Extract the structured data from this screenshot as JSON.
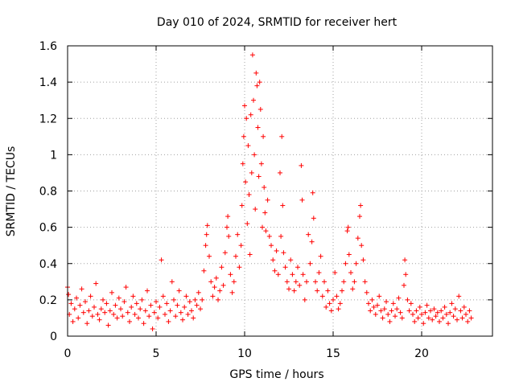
{
  "chart_data": {
    "type": "scatter",
    "title": "Day 010 of 2024, SRMTID for receiver hert",
    "xlabel": "GPS time / hours",
    "ylabel": "SRMTID / TECUs",
    "xlim": [
      0,
      24
    ],
    "ylim": [
      0,
      1.6
    ],
    "x_ticks": [
      0,
      5,
      10,
      15,
      20
    ],
    "x_tick_labels": [
      "0",
      "5",
      "10",
      "15",
      "20"
    ],
    "y_ticks": [
      0,
      0.2,
      0.4,
      0.6,
      0.8,
      1.0,
      1.2,
      1.4,
      1.6
    ],
    "y_tick_labels": [
      "0",
      "0.2",
      "0.4",
      "0.6",
      "0.8",
      "1",
      "1.2",
      "1.4",
      "1.6"
    ],
    "grid": true,
    "marker": "+",
    "marker_color": "#ff0000",
    "x_data_end": 22.8,
    "series": [
      {
        "name": "SRMTID",
        "points": [
          [
            0.0,
            0.27
          ],
          [
            0.05,
            0.23
          ],
          [
            0.1,
            0.12
          ],
          [
            0.2,
            0.18
          ],
          [
            0.3,
            0.08
          ],
          [
            0.4,
            0.15
          ],
          [
            0.5,
            0.21
          ],
          [
            0.6,
            0.1
          ],
          [
            0.7,
            0.17
          ],
          [
            0.8,
            0.26
          ],
          [
            0.9,
            0.13
          ],
          [
            1.0,
            0.19
          ],
          [
            1.1,
            0.07
          ],
          [
            1.2,
            0.14
          ],
          [
            1.3,
            0.22
          ],
          [
            1.4,
            0.11
          ],
          [
            1.5,
            0.16
          ],
          [
            1.6,
            0.29
          ],
          [
            1.7,
            0.12
          ],
          [
            1.8,
            0.09
          ],
          [
            1.9,
            0.15
          ],
          [
            2.0,
            0.2
          ],
          [
            2.1,
            0.13
          ],
          [
            2.2,
            0.18
          ],
          [
            2.3,
            0.06
          ],
          [
            2.4,
            0.14
          ],
          [
            2.5,
            0.24
          ],
          [
            2.6,
            0.12
          ],
          [
            2.7,
            0.17
          ],
          [
            2.8,
            0.1
          ],
          [
            2.9,
            0.21
          ],
          [
            3.0,
            0.15
          ],
          [
            3.1,
            0.11
          ],
          [
            3.2,
            0.19
          ],
          [
            3.3,
            0.27
          ],
          [
            3.4,
            0.13
          ],
          [
            3.5,
            0.08
          ],
          [
            3.6,
            0.16
          ],
          [
            3.7,
            0.22
          ],
          [
            3.8,
            0.12
          ],
          [
            3.9,
            0.18
          ],
          [
            4.0,
            0.1
          ],
          [
            4.1,
            0.15
          ],
          [
            4.2,
            0.2
          ],
          [
            4.3,
            0.07
          ],
          [
            4.4,
            0.14
          ],
          [
            4.5,
            0.25
          ],
          [
            4.6,
            0.11
          ],
          [
            4.7,
            0.17
          ],
          [
            4.8,
            0.04
          ],
          [
            4.9,
            0.13
          ],
          [
            5.0,
            0.19
          ],
          [
            5.1,
            0.1
          ],
          [
            5.2,
            0.16
          ],
          [
            5.3,
            0.42
          ],
          [
            5.4,
            0.22
          ],
          [
            5.5,
            0.12
          ],
          [
            5.6,
            0.18
          ],
          [
            5.7,
            0.08
          ],
          [
            5.8,
            0.14
          ],
          [
            5.9,
            0.3
          ],
          [
            6.0,
            0.2
          ],
          [
            6.1,
            0.11
          ],
          [
            6.2,
            0.17
          ],
          [
            6.3,
            0.25
          ],
          [
            6.4,
            0.13
          ],
          [
            6.5,
            0.09
          ],
          [
            6.6,
            0.16
          ],
          [
            6.7,
            0.22
          ],
          [
            6.8,
            0.12
          ],
          [
            6.9,
            0.19
          ],
          [
            7.0,
            0.14
          ],
          [
            7.1,
            0.1
          ],
          [
            7.2,
            0.2
          ],
          [
            7.3,
            0.17
          ],
          [
            7.4,
            0.24
          ],
          [
            7.5,
            0.15
          ],
          [
            7.6,
            0.2
          ],
          [
            7.7,
            0.36
          ],
          [
            7.8,
            0.5
          ],
          [
            7.85,
            0.56
          ],
          [
            7.9,
            0.61
          ],
          [
            8.0,
            0.44
          ],
          [
            8.1,
            0.3
          ],
          [
            8.2,
            0.22
          ],
          [
            8.3,
            0.27
          ],
          [
            8.4,
            0.32
          ],
          [
            8.5,
            0.2
          ],
          [
            8.6,
            0.25
          ],
          [
            8.7,
            0.38
          ],
          [
            8.8,
            0.28
          ],
          [
            8.9,
            0.46
          ],
          [
            9.0,
            0.6
          ],
          [
            9.05,
            0.66
          ],
          [
            9.1,
            0.55
          ],
          [
            9.2,
            0.34
          ],
          [
            9.3,
            0.24
          ],
          [
            9.4,
            0.3
          ],
          [
            9.5,
            0.44
          ],
          [
            9.6,
            0.56
          ],
          [
            9.7,
            0.38
          ],
          [
            9.8,
            0.5
          ],
          [
            9.85,
            0.72
          ],
          [
            9.9,
            0.95
          ],
          [
            9.95,
            1.1
          ],
          [
            10.0,
            1.27
          ],
          [
            10.05,
            0.85
          ],
          [
            10.1,
            1.2
          ],
          [
            10.15,
            0.62
          ],
          [
            10.2,
            1.05
          ],
          [
            10.25,
            0.78
          ],
          [
            10.3,
            0.45
          ],
          [
            10.35,
            1.22
          ],
          [
            10.4,
            0.9
          ],
          [
            10.45,
            1.55
          ],
          [
            10.5,
            1.3
          ],
          [
            10.55,
            1.0
          ],
          [
            10.6,
            0.7
          ],
          [
            10.65,
            1.45
          ],
          [
            10.7,
            1.38
          ],
          [
            10.75,
            1.15
          ],
          [
            10.8,
            0.88
          ],
          [
            10.85,
            1.4
          ],
          [
            10.9,
            1.25
          ],
          [
            10.95,
            0.95
          ],
          [
            11.0,
            0.6
          ],
          [
            11.05,
            1.1
          ],
          [
            11.1,
            0.82
          ],
          [
            11.15,
            0.68
          ],
          [
            11.2,
            0.58
          ],
          [
            11.3,
            0.75
          ],
          [
            11.4,
            0.55
          ],
          [
            11.5,
            0.5
          ],
          [
            11.6,
            0.42
          ],
          [
            11.7,
            0.36
          ],
          [
            11.8,
            0.47
          ],
          [
            11.9,
            0.34
          ],
          [
            12.0,
            0.9
          ],
          [
            12.05,
            0.55
          ],
          [
            12.1,
            1.1
          ],
          [
            12.15,
            0.72
          ],
          [
            12.2,
            0.46
          ],
          [
            12.3,
            0.38
          ],
          [
            12.4,
            0.3
          ],
          [
            12.5,
            0.26
          ],
          [
            12.6,
            0.42
          ],
          [
            12.7,
            0.34
          ],
          [
            12.8,
            0.25
          ],
          [
            12.9,
            0.3
          ],
          [
            13.0,
            0.38
          ],
          [
            13.1,
            0.28
          ],
          [
            13.2,
            0.94
          ],
          [
            13.25,
            0.75
          ],
          [
            13.3,
            0.34
          ],
          [
            13.4,
            0.2
          ],
          [
            13.5,
            0.3
          ],
          [
            13.6,
            0.56
          ],
          [
            13.7,
            0.4
          ],
          [
            13.8,
            0.52
          ],
          [
            13.85,
            0.79
          ],
          [
            13.9,
            0.65
          ],
          [
            14.0,
            0.3
          ],
          [
            14.1,
            0.25
          ],
          [
            14.2,
            0.35
          ],
          [
            14.3,
            0.44
          ],
          [
            14.4,
            0.22
          ],
          [
            14.5,
            0.3
          ],
          [
            14.6,
            0.16
          ],
          [
            14.7,
            0.25
          ],
          [
            14.8,
            0.18
          ],
          [
            14.9,
            0.14
          ],
          [
            15.0,
            0.2
          ],
          [
            15.1,
            0.35
          ],
          [
            15.2,
            0.22
          ],
          [
            15.3,
            0.15
          ],
          [
            15.4,
            0.18
          ],
          [
            15.5,
            0.25
          ],
          [
            15.6,
            0.3
          ],
          [
            15.7,
            0.4
          ],
          [
            15.8,
            0.58
          ],
          [
            15.85,
            0.6
          ],
          [
            15.9,
            0.45
          ],
          [
            16.0,
            0.35
          ],
          [
            16.1,
            0.26
          ],
          [
            16.2,
            0.3
          ],
          [
            16.3,
            0.4
          ],
          [
            16.4,
            0.54
          ],
          [
            16.5,
            0.66
          ],
          [
            16.55,
            0.72
          ],
          [
            16.6,
            0.5
          ],
          [
            16.7,
            0.42
          ],
          [
            16.8,
            0.3
          ],
          [
            16.9,
            0.24
          ],
          [
            17.0,
            0.18
          ],
          [
            17.1,
            0.14
          ],
          [
            17.2,
            0.2
          ],
          [
            17.3,
            0.16
          ],
          [
            17.4,
            0.12
          ],
          [
            17.5,
            0.17
          ],
          [
            17.6,
            0.22
          ],
          [
            17.7,
            0.14
          ],
          [
            17.8,
            0.1
          ],
          [
            17.9,
            0.15
          ],
          [
            18.0,
            0.19
          ],
          [
            18.1,
            0.12
          ],
          [
            18.2,
            0.08
          ],
          [
            18.3,
            0.14
          ],
          [
            18.4,
            0.18
          ],
          [
            18.5,
            0.11
          ],
          [
            18.6,
            0.15
          ],
          [
            18.7,
            0.21
          ],
          [
            18.8,
            0.13
          ],
          [
            18.9,
            0.1
          ],
          [
            19.0,
            0.28
          ],
          [
            19.05,
            0.42
          ],
          [
            19.1,
            0.34
          ],
          [
            19.2,
            0.2
          ],
          [
            19.3,
            0.14
          ],
          [
            19.4,
            0.18
          ],
          [
            19.5,
            0.12
          ],
          [
            19.6,
            0.08
          ],
          [
            19.7,
            0.14
          ],
          [
            19.8,
            0.1
          ],
          [
            19.9,
            0.16
          ],
          [
            20.0,
            0.12
          ],
          [
            20.1,
            0.07
          ],
          [
            20.2,
            0.13
          ],
          [
            20.3,
            0.17
          ],
          [
            20.4,
            0.1
          ],
          [
            20.5,
            0.14
          ],
          [
            20.6,
            0.09
          ],
          [
            20.7,
            0.15
          ],
          [
            20.8,
            0.11
          ],
          [
            20.9,
            0.13
          ],
          [
            21.0,
            0.08
          ],
          [
            21.1,
            0.14
          ],
          [
            21.2,
            0.1
          ],
          [
            21.3,
            0.16
          ],
          [
            21.4,
            0.12
          ],
          [
            21.5,
            0.07
          ],
          [
            21.6,
            0.13
          ],
          [
            21.7,
            0.18
          ],
          [
            21.8,
            0.11
          ],
          [
            21.9,
            0.15
          ],
          [
            22.0,
            0.09
          ],
          [
            22.1,
            0.22
          ],
          [
            22.2,
            0.14
          ],
          [
            22.3,
            0.1
          ],
          [
            22.4,
            0.16
          ],
          [
            22.5,
            0.12
          ],
          [
            22.6,
            0.08
          ],
          [
            22.7,
            0.14
          ],
          [
            22.8,
            0.1
          ]
        ]
      }
    ]
  }
}
